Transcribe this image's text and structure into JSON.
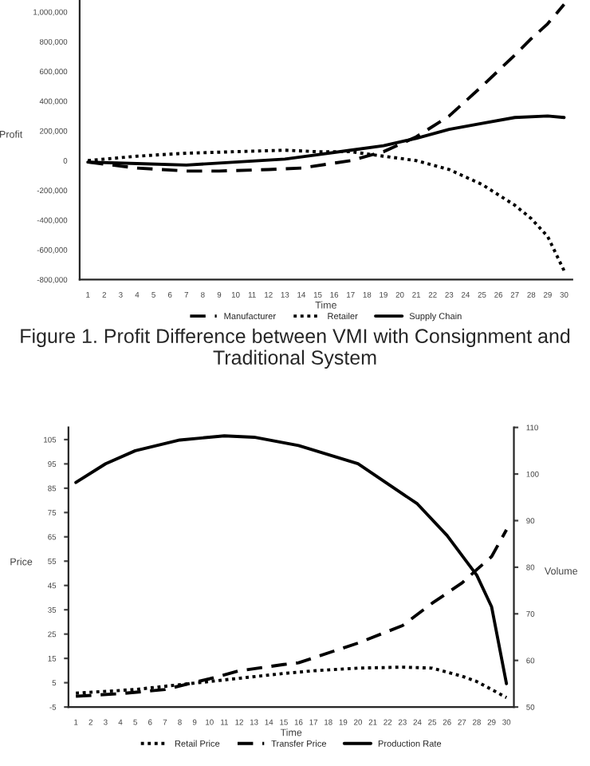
{
  "chart_data": [
    {
      "type": "line",
      "xlabel": "Time",
      "ylabel": "Profit",
      "xlim": [
        0.5,
        30.5
      ],
      "xticks": [
        1,
        2,
        3,
        4,
        5,
        6,
        7,
        8,
        9,
        10,
        11,
        12,
        13,
        14,
        15,
        16,
        17,
        18,
        19,
        20,
        21,
        22,
        23,
        24,
        25,
        26,
        27,
        28,
        29,
        30
      ],
      "ylim": [
        -800000,
        1080000
      ],
      "yticks": [
        {
          "value": -800000,
          "label": "-800,000"
        },
        {
          "value": -600000,
          "label": "-600,000"
        },
        {
          "value": -400000,
          "label": "-400,000"
        },
        {
          "value": -200000,
          "label": "-200,000"
        },
        0,
        {
          "value": 200000,
          "label": "200,000"
        },
        {
          "value": 400000,
          "label": "400,000"
        },
        {
          "value": 600000,
          "label": "600,000"
        },
        {
          "value": 800000,
          "label": "800,000"
        },
        {
          "value": 1000000,
          "label": "1,000,000"
        }
      ],
      "legend": "bottom",
      "grid": false,
      "series": [
        {
          "name": "Manufacturer",
          "color": "#000000",
          "line_style": "dashed",
          "x": [
            1,
            4,
            7,
            9,
            12,
            14,
            17,
            19,
            21,
            23,
            25,
            27,
            28,
            29,
            30
          ],
          "values": [
            -10000,
            -50000,
            -70000,
            -70000,
            -60000,
            -50000,
            0,
            60000,
            160000,
            300000,
            500000,
            710000,
            820000,
            920000,
            1050000
          ]
        },
        {
          "name": "Retailer",
          "color": "#000000",
          "line_style": "dotted",
          "x": [
            1,
            4,
            7,
            10,
            13,
            15,
            17,
            19,
            21,
            23,
            25,
            27,
            28,
            29,
            30
          ],
          "values": [
            0,
            30000,
            50000,
            60000,
            70000,
            60000,
            60000,
            30000,
            0,
            -60000,
            -160000,
            -300000,
            -390000,
            -510000,
            -740000
          ]
        },
        {
          "name": "Supply Chain",
          "color": "#000000",
          "line_style": "solid",
          "x": [
            1,
            4,
            7,
            10,
            13,
            15,
            17,
            19,
            21,
            23,
            25,
            27,
            29,
            30
          ],
          "values": [
            -10000,
            -20000,
            -30000,
            -10000,
            10000,
            40000,
            70000,
            100000,
            150000,
            210000,
            250000,
            290000,
            300000,
            290000
          ]
        }
      ],
      "annotations": [
        "Figure 1. Profit Difference between VMI with Consignment and Traditional System"
      ]
    },
    {
      "type": "line",
      "xlabel": "Time",
      "ylabel": "Price",
      "y2label": "Volume",
      "xlim": [
        0.5,
        30.5
      ],
      "xticks": [
        1,
        2,
        3,
        4,
        5,
        6,
        7,
        8,
        9,
        10,
        11,
        12,
        13,
        14,
        15,
        16,
        17,
        18,
        19,
        20,
        21,
        22,
        23,
        24,
        25,
        26,
        27,
        28,
        29,
        30
      ],
      "ylim": [
        -5,
        110
      ],
      "yticks": [
        -5,
        5,
        15,
        25,
        35,
        45,
        55,
        65,
        75,
        85,
        95,
        105
      ],
      "y2lim": [
        50,
        110
      ],
      "y2ticks": [
        50,
        60,
        70,
        80,
        90,
        100,
        110
      ],
      "legend": "bottom",
      "grid": false,
      "series": [
        {
          "name": "Retail Price",
          "color": "#000000",
          "line_style": "dotted",
          "x": [
            1,
            5,
            10,
            15,
            17,
            20,
            23,
            25,
            27,
            28,
            30
          ],
          "values": [
            0.7,
            2.2,
            5.5,
            8.8,
            9.9,
            11,
            11.4,
            11,
            7.7,
            5.5,
            -1.1
          ]
        },
        {
          "name": "Transfer Price",
          "color": "#000000",
          "line_style": "dashed",
          "x": [
            1,
            4,
            7,
            10,
            12,
            15,
            16,
            20,
            23,
            25,
            27,
            28,
            29,
            30
          ],
          "values": [
            -0.6,
            0.5,
            2.2,
            6.6,
            9.9,
            12.5,
            13.2,
            21.3,
            28.5,
            37.7,
            46,
            51.5,
            56.9,
            67.9
          ]
        },
        {
          "name": "Production Rate",
          "color": "#000000",
          "line_style": "solid",
          "axis": "y2",
          "x": [
            1,
            3,
            5,
            8,
            11,
            13,
            15,
            16,
            20,
            24,
            26,
            28,
            29,
            30
          ],
          "values": [
            98.2,
            102.2,
            105,
            107.3,
            108.2,
            107.9,
            106.7,
            106.1,
            102.2,
            93.6,
            86.8,
            78.3,
            71.5,
            55.0
          ]
        }
      ]
    }
  ]
}
